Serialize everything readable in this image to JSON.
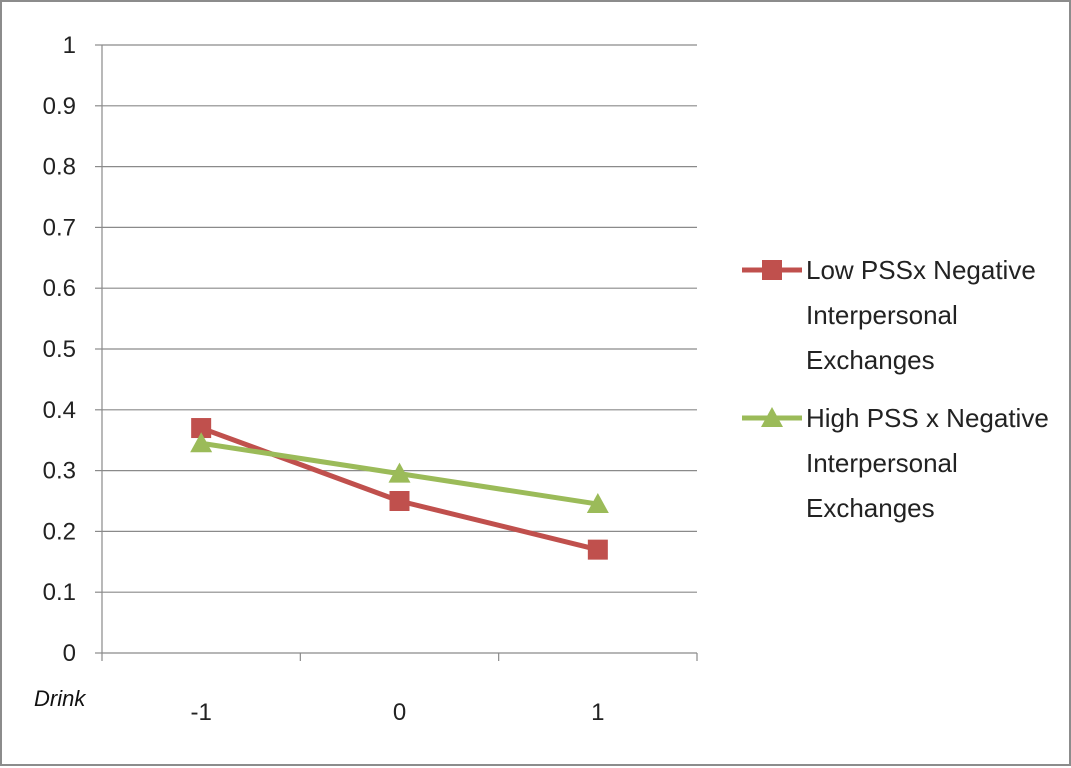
{
  "chart_data": {
    "type": "line",
    "title": "",
    "xlabel": "Drink",
    "ylabel": "",
    "categories": [
      "-1",
      "0",
      "1"
    ],
    "ylim": [
      0,
      1
    ],
    "yticks": [
      "0",
      "0.1",
      "0.2",
      "0.3",
      "0.4",
      "0.5",
      "0.6",
      "0.7",
      "0.8",
      "0.9",
      "1"
    ],
    "grid": true,
    "legend_position": "right",
    "series": [
      {
        "name": "Low PSSx Negative Interpersonal Exchanges",
        "name_lines": [
          "Low PSSx Negative",
          "Interpersonal",
          "Exchanges"
        ],
        "values": [
          0.37,
          0.25,
          0.17
        ],
        "color": "#c0504d",
        "marker": "square"
      },
      {
        "name": "High PSS x Negative Interpersonal Exchanges",
        "name_lines": [
          "High PSS x Negative",
          "Interpersonal",
          "Exchanges"
        ],
        "values": [
          0.345,
          0.295,
          0.245
        ],
        "color": "#9bbb59",
        "marker": "triangle"
      }
    ]
  }
}
